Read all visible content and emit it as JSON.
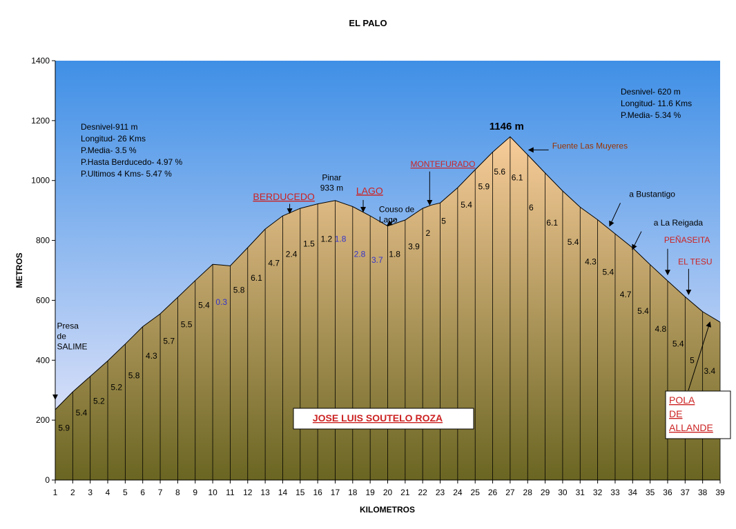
{
  "chart_data": {
    "type": "area",
    "title": "EL PALO",
    "xlabel": "KILOMETROS",
    "ylabel": "METROS",
    "xlim": [
      1,
      39
    ],
    "ylim": [
      0,
      1400
    ],
    "y_ticks": [
      0,
      200,
      400,
      600,
      800,
      1000,
      1200,
      1400
    ],
    "x_ticks": [
      1,
      2,
      3,
      4,
      5,
      6,
      7,
      8,
      9,
      10,
      11,
      12,
      13,
      14,
      15,
      16,
      17,
      18,
      19,
      20,
      21,
      22,
      23,
      24,
      25,
      26,
      27,
      28,
      29,
      30,
      31,
      32,
      33,
      34,
      35,
      36,
      37,
      38,
      39
    ],
    "grid": false,
    "series": [
      {
        "x": [
          1,
          2,
          3,
          4,
          5,
          6,
          7,
          8,
          9,
          10,
          10.5,
          11,
          12,
          13,
          14,
          15,
          16,
          17,
          18,
          19,
          20,
          21,
          22,
          22.5,
          23,
          24,
          25,
          26,
          27,
          28,
          29,
          30,
          31,
          32,
          33,
          34,
          35,
          36,
          37,
          38,
          39
        ],
        "values": [
          235,
          294,
          346,
          398,
          454,
          512,
          555,
          610,
          666,
          720,
          718,
          715,
          776,
          838,
          882,
          907,
          922,
          933,
          913,
          882,
          848,
          868,
          907,
          918,
          925,
          976,
          1036,
          1095,
          1146,
          1086,
          1025,
          965,
          911,
          869,
          822,
          775,
          719,
          665,
          612,
          562,
          527
        ]
      }
    ],
    "segment_labels": [
      {
        "x": 1.5,
        "y": 165,
        "text": "5.9",
        "color": "#000000"
      },
      {
        "x": 2.5,
        "y": 215,
        "text": "5.4",
        "color": "#000000"
      },
      {
        "x": 3.5,
        "y": 255,
        "text": "5.2",
        "color": "#000000"
      },
      {
        "x": 4.5,
        "y": 300,
        "text": "5.2",
        "color": "#000000"
      },
      {
        "x": 5.5,
        "y": 340,
        "text": "5.8",
        "color": "#000000"
      },
      {
        "x": 6.5,
        "y": 405,
        "text": "4.3",
        "color": "#000000"
      },
      {
        "x": 7.5,
        "y": 455,
        "text": "5.7",
        "color": "#000000"
      },
      {
        "x": 8.5,
        "y": 510,
        "text": "5.5",
        "color": "#000000"
      },
      {
        "x": 9.5,
        "y": 575,
        "text": "5.4",
        "color": "#000000"
      },
      {
        "x": 10.5,
        "y": 585,
        "text": "0.3",
        "color": "#3333cc"
      },
      {
        "x": 11.5,
        "y": 625,
        "text": "5.8",
        "color": "#000000"
      },
      {
        "x": 12.5,
        "y": 665,
        "text": "6.1",
        "color": "#000000"
      },
      {
        "x": 13.5,
        "y": 715,
        "text": "4.7",
        "color": "#000000"
      },
      {
        "x": 14.5,
        "y": 745,
        "text": "2.4",
        "color": "#000000"
      },
      {
        "x": 15.5,
        "y": 780,
        "text": "1.5",
        "color": "#000000"
      },
      {
        "x": 16.5,
        "y": 795,
        "text": "1.2",
        "color": "#000000"
      },
      {
        "x": 17.3,
        "y": 795,
        "text": "1.8",
        "color": "#3333cc"
      },
      {
        "x": 18.4,
        "y": 745,
        "text": "2.8",
        "color": "#3333cc"
      },
      {
        "x": 19.4,
        "y": 725,
        "text": "3.7",
        "color": "#3333cc"
      },
      {
        "x": 20.4,
        "y": 745,
        "text": "1.8",
        "color": "#000000"
      },
      {
        "x": 21.5,
        "y": 770,
        "text": "3.9",
        "color": "#000000"
      },
      {
        "x": 22.3,
        "y": 815,
        "text": "2",
        "color": "#000000"
      },
      {
        "x": 23.2,
        "y": 855,
        "text": "5",
        "color": "#000000"
      },
      {
        "x": 24.5,
        "y": 910,
        "text": "5.4",
        "color": "#000000"
      },
      {
        "x": 25.5,
        "y": 970,
        "text": "5.9",
        "color": "#000000"
      },
      {
        "x": 26.4,
        "y": 1020,
        "text": "5.6",
        "color": "#000000"
      },
      {
        "x": 27.4,
        "y": 1000,
        "text": "6.1",
        "color": "#000000"
      },
      {
        "x": 28.2,
        "y": 900,
        "text": "6",
        "color": "#000000"
      },
      {
        "x": 29.4,
        "y": 850,
        "text": "6.1",
        "color": "#000000"
      },
      {
        "x": 30.6,
        "y": 785,
        "text": "5.4",
        "color": "#000000"
      },
      {
        "x": 31.6,
        "y": 720,
        "text": "4.3",
        "color": "#000000"
      },
      {
        "x": 32.6,
        "y": 685,
        "text": "5.4",
        "color": "#000000"
      },
      {
        "x": 33.6,
        "y": 610,
        "text": "4.7",
        "color": "#000000"
      },
      {
        "x": 34.6,
        "y": 555,
        "text": "5.4",
        "color": "#000000"
      },
      {
        "x": 35.6,
        "y": 495,
        "text": "4.8",
        "color": "#000000"
      },
      {
        "x": 36.6,
        "y": 445,
        "text": "5.4",
        "color": "#000000"
      },
      {
        "x": 37.4,
        "y": 390,
        "text": "5",
        "color": "#000000"
      },
      {
        "x": 38.4,
        "y": 355,
        "text": "3.4",
        "color": "#000000"
      }
    ],
    "annotations": [
      {
        "lines": [
          "Presa",
          "de",
          "SALIME"
        ],
        "x": 1.1,
        "y": 505,
        "color": "#000000",
        "size": 12,
        "anchor": "start",
        "arrow": {
          "from": [
            1.0,
            445
          ],
          "to": [
            1.0,
            272
          ]
        }
      },
      {
        "lines": [
          "BERDUCEDO"
        ],
        "x": 12.3,
        "y": 935,
        "color": "#cc2222",
        "size": 14,
        "anchor": "start",
        "underline": true,
        "arrow": {
          "from": [
            14.4,
            922
          ],
          "to": [
            14.4,
            893
          ]
        }
      },
      {
        "lines": [
          "Pinar",
          "933 m"
        ],
        "x": 16.8,
        "y": 1000,
        "color": "#000000",
        "size": 12,
        "anchor": "middle"
      },
      {
        "lines": [
          "LAGO"
        ],
        "x": 18.2,
        "y": 955,
        "color": "#cc2222",
        "size": 14,
        "anchor": "start",
        "underline": true,
        "arrow": {
          "from": [
            18.6,
            935
          ],
          "to": [
            18.6,
            898
          ]
        }
      },
      {
        "lines": [
          "Couso de",
          "Lago"
        ],
        "x": 19.5,
        "y": 895,
        "color": "#000000",
        "size": 12,
        "anchor": "start",
        "arrow": {
          "from": [
            20.5,
            872
          ],
          "to": [
            20.0,
            851
          ]
        }
      },
      {
        "lines": [
          "MONTEFURADO"
        ],
        "x": 21.3,
        "y": 1045,
        "color": "#cc2222",
        "size": 12,
        "anchor": "start",
        "underline": true,
        "arrow": {
          "from": [
            22.4,
            1030
          ],
          "to": [
            22.4,
            921
          ]
        }
      },
      {
        "lines": [
          "1146 m"
        ],
        "x": 26.8,
        "y": 1170,
        "color": "#000000",
        "size": 15,
        "anchor": "middle",
        "bold": true
      },
      {
        "lines": [
          "Fuente Las Muyeres"
        ],
        "x": 29.4,
        "y": 1106,
        "color": "#993300",
        "size": 12,
        "anchor": "start",
        "arrow": {
          "from": [
            29.2,
            1102
          ],
          "to": [
            28.1,
            1102
          ]
        }
      },
      {
        "lines": [
          "a Bustantigo"
        ],
        "x": 33.8,
        "y": 945,
        "color": "#000000",
        "size": 12,
        "anchor": "start",
        "arrow": {
          "from": [
            33.3,
            925
          ],
          "to": [
            32.7,
            850
          ]
        }
      },
      {
        "lines": [
          "a La Reigada"
        ],
        "x": 35.2,
        "y": 850,
        "color": "#000000",
        "size": 12,
        "anchor": "start",
        "arrow": {
          "from": [
            34.5,
            830
          ],
          "to": [
            34.0,
            772
          ]
        }
      },
      {
        "lines": [
          "PEÑASEITA"
        ],
        "x": 35.8,
        "y": 792,
        "color": "#cc2222",
        "size": 12,
        "anchor": "start",
        "arrow": {
          "from": [
            36.0,
            772
          ],
          "to": [
            36.0,
            688
          ]
        }
      },
      {
        "lines": [
          "EL TESU"
        ],
        "x": 36.6,
        "y": 720,
        "color": "#cc2222",
        "size": 12,
        "anchor": "start",
        "arrow": {
          "from": [
            37.2,
            705
          ],
          "to": [
            37.2,
            622
          ]
        }
      }
    ]
  },
  "stats_left": {
    "lines": [
      "Desnivel-911 m",
      "Longitud- 26 Kms",
      "P.Media- 3.5 %",
      "P.Hasta Berducedo- 4.97 %",
      "P.Ultimos 4 Kms- 5.47 %"
    ]
  },
  "stats_right": {
    "lines": [
      "Desnivel- 620 m",
      "Longitud- 11.6 Kms",
      "P.Media- 5.34 %"
    ]
  },
  "author_box": {
    "text": "JOSE LUIS SOUTELO ROZA"
  },
  "end_box": {
    "lines": [
      "POLA",
      "DE",
      "ALLANDE"
    ]
  },
  "colors": {
    "sky_top": "#3f8fe6",
    "sky_bottom": "#f4eefc",
    "fill_top": "#f8cc99",
    "fill_bottom": "#6a6522",
    "red_label": "#cc2222",
    "blue_label": "#3333cc"
  }
}
